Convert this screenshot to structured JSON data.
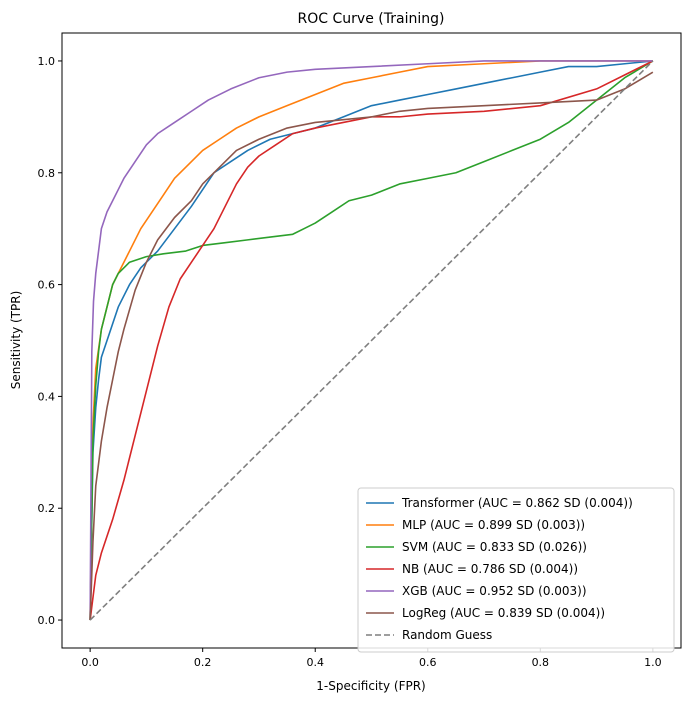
{
  "chart_data": {
    "type": "line",
    "title": "ROC Curve (Training)",
    "xlabel": "1-Specificity (FPR)",
    "ylabel": "Sensitivity (TPR)",
    "xlim": [
      -0.05,
      1.05
    ],
    "ylim": [
      -0.05,
      1.05
    ],
    "xticks": [
      "0.0",
      "0.2",
      "0.4",
      "0.6",
      "0.8",
      "1.0"
    ],
    "yticks": [
      "0.0",
      "0.2",
      "0.4",
      "0.6",
      "0.8",
      "1.0"
    ],
    "grid": false,
    "legend_position": "lower-right",
    "series": [
      {
        "name": "Transformer (AUC = 0.862 SD (0.004))",
        "color": "#1f77b4",
        "style": "solid",
        "x": [
          0,
          0.005,
          0.01,
          0.015,
          0.02,
          0.03,
          0.04,
          0.05,
          0.07,
          0.09,
          0.12,
          0.15,
          0.18,
          0.2,
          0.22,
          0.25,
          0.28,
          0.32,
          0.36,
          0.4,
          0.45,
          0.5,
          0.55,
          0.6,
          0.65,
          0.7,
          0.75,
          0.8,
          0.85,
          0.9,
          0.95,
          1.0
        ],
        "y": [
          0,
          0.3,
          0.38,
          0.43,
          0.47,
          0.5,
          0.53,
          0.56,
          0.6,
          0.63,
          0.66,
          0.7,
          0.74,
          0.77,
          0.8,
          0.82,
          0.84,
          0.86,
          0.87,
          0.88,
          0.9,
          0.92,
          0.93,
          0.94,
          0.95,
          0.96,
          0.97,
          0.98,
          0.99,
          0.99,
          0.995,
          1.0
        ]
      },
      {
        "name": "MLP (AUC = 0.899 SD (0.003))",
        "color": "#ff7f0e",
        "style": "solid",
        "x": [
          0,
          0.005,
          0.01,
          0.02,
          0.03,
          0.04,
          0.05,
          0.07,
          0.09,
          0.11,
          0.13,
          0.15,
          0.17,
          0.2,
          0.23,
          0.26,
          0.3,
          0.35,
          0.4,
          0.45,
          0.5,
          0.55,
          0.6,
          0.7,
          0.8,
          0.9,
          1.0
        ],
        "y": [
          0,
          0.35,
          0.45,
          0.52,
          0.56,
          0.6,
          0.62,
          0.66,
          0.7,
          0.73,
          0.76,
          0.79,
          0.81,
          0.84,
          0.86,
          0.88,
          0.9,
          0.92,
          0.94,
          0.96,
          0.97,
          0.98,
          0.99,
          0.995,
          1.0,
          1.0,
          1.0
        ]
      },
      {
        "name": "SVM (AUC = 0.833 SD (0.026))",
        "color": "#2ca02c",
        "style": "solid",
        "x": [
          0,
          0.005,
          0.01,
          0.015,
          0.02,
          0.03,
          0.04,
          0.05,
          0.07,
          0.1,
          0.13,
          0.17,
          0.2,
          0.24,
          0.28,
          0.32,
          0.36,
          0.38,
          0.4,
          0.43,
          0.46,
          0.5,
          0.55,
          0.6,
          0.65,
          0.7,
          0.75,
          0.8,
          0.85,
          0.9,
          0.95,
          1.0
        ],
        "y": [
          0,
          0.32,
          0.42,
          0.48,
          0.52,
          0.56,
          0.6,
          0.62,
          0.64,
          0.65,
          0.655,
          0.66,
          0.67,
          0.675,
          0.68,
          0.685,
          0.69,
          0.7,
          0.71,
          0.73,
          0.75,
          0.76,
          0.78,
          0.79,
          0.8,
          0.82,
          0.84,
          0.86,
          0.89,
          0.93,
          0.97,
          1.0
        ]
      },
      {
        "name": "NB (AUC = 0.786 SD (0.004))",
        "color": "#d62728",
        "style": "solid",
        "x": [
          0,
          0.01,
          0.02,
          0.04,
          0.06,
          0.08,
          0.1,
          0.12,
          0.14,
          0.16,
          0.18,
          0.2,
          0.22,
          0.24,
          0.26,
          0.28,
          0.3,
          0.33,
          0.36,
          0.4,
          0.45,
          0.5,
          0.55,
          0.6,
          0.7,
          0.8,
          0.9,
          1.0
        ],
        "y": [
          0,
          0.08,
          0.12,
          0.18,
          0.25,
          0.33,
          0.41,
          0.49,
          0.56,
          0.61,
          0.64,
          0.67,
          0.7,
          0.74,
          0.78,
          0.81,
          0.83,
          0.85,
          0.87,
          0.88,
          0.89,
          0.9,
          0.9,
          0.905,
          0.91,
          0.92,
          0.95,
          1.0
        ]
      },
      {
        "name": "XGB (AUC = 0.952 SD (0.003))",
        "color": "#9467bd",
        "style": "solid",
        "x": [
          0,
          0.003,
          0.006,
          0.01,
          0.015,
          0.02,
          0.03,
          0.04,
          0.05,
          0.06,
          0.08,
          0.1,
          0.12,
          0.15,
          0.18,
          0.21,
          0.25,
          0.3,
          0.35,
          0.4,
          0.5,
          0.6,
          0.7,
          0.8,
          0.9,
          1.0
        ],
        "y": [
          0,
          0.48,
          0.57,
          0.62,
          0.66,
          0.7,
          0.73,
          0.75,
          0.77,
          0.79,
          0.82,
          0.85,
          0.87,
          0.89,
          0.91,
          0.93,
          0.95,
          0.97,
          0.98,
          0.985,
          0.99,
          0.995,
          1.0,
          1.0,
          1.0,
          1.0
        ]
      },
      {
        "name": "LogReg (AUC = 0.839 SD (0.004))",
        "color": "#8c564b",
        "style": "solid",
        "x": [
          0,
          0.005,
          0.01,
          0.02,
          0.03,
          0.04,
          0.05,
          0.06,
          0.08,
          0.1,
          0.12,
          0.15,
          0.18,
          0.2,
          0.23,
          0.26,
          0.3,
          0.35,
          0.4,
          0.45,
          0.5,
          0.55,
          0.6,
          0.7,
          0.8,
          0.9,
          0.95,
          1.0
        ],
        "y": [
          0,
          0.14,
          0.24,
          0.32,
          0.38,
          0.43,
          0.48,
          0.52,
          0.59,
          0.64,
          0.68,
          0.72,
          0.75,
          0.78,
          0.81,
          0.84,
          0.86,
          0.88,
          0.89,
          0.895,
          0.9,
          0.91,
          0.915,
          0.92,
          0.925,
          0.93,
          0.95,
          0.98
        ]
      },
      {
        "name": "Random Guess",
        "color": "#7f7f7f",
        "style": "dashed",
        "x": [
          0,
          1
        ],
        "y": [
          0,
          1
        ]
      }
    ]
  }
}
